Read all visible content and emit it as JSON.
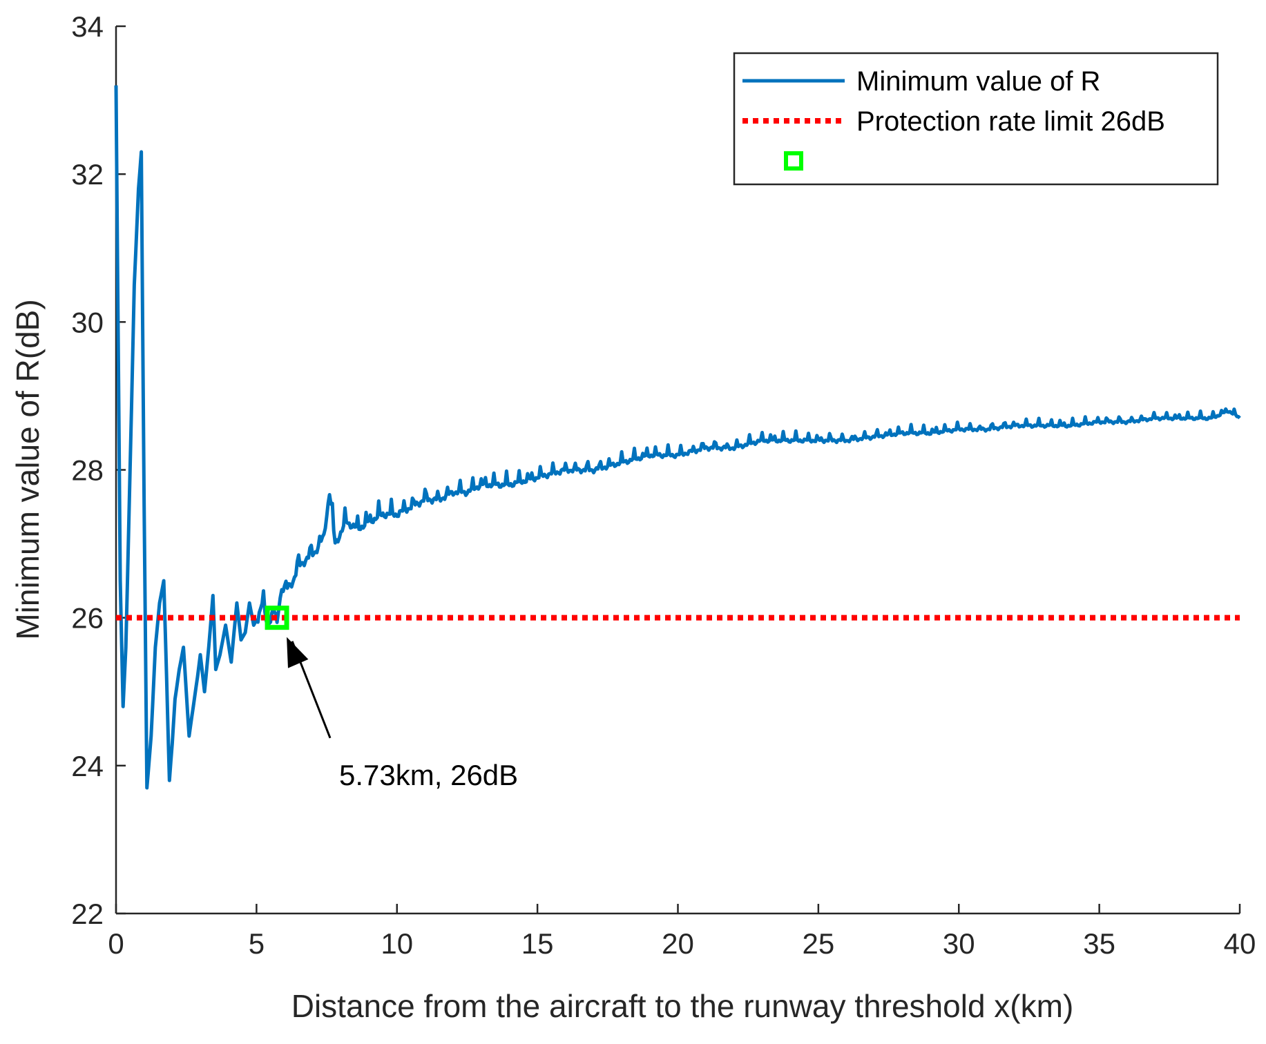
{
  "chart_data": {
    "type": "line",
    "title": "",
    "xlabel": "Distance from the aircraft to the runway threshold x(km)",
    "ylabel": "Minimum value of R(dB)",
    "xlim": [
      0,
      40
    ],
    "ylim": [
      22,
      34
    ],
    "xticks": [
      0,
      5,
      10,
      15,
      20,
      25,
      30,
      35,
      40
    ],
    "yticks": [
      22,
      24,
      26,
      28,
      30,
      32,
      34
    ],
    "grid": false,
    "legend_position": "top-right",
    "series": [
      {
        "name": "Minimum value of R",
        "style": "solid",
        "color": "#0072BD",
        "x": [
          0.0,
          0.15,
          0.25,
          0.35,
          0.5,
          0.65,
          0.8,
          0.9,
          1.0,
          1.1,
          1.25,
          1.4,
          1.55,
          1.7,
          1.8,
          1.9,
          2.0,
          2.1,
          2.25,
          2.4,
          2.6,
          2.75,
          2.9,
          3.0,
          3.15,
          3.3,
          3.45,
          3.55,
          3.7,
          3.9,
          4.1,
          4.3,
          4.45,
          4.6,
          4.75,
          4.9,
          5.05,
          5.2,
          5.4,
          5.6,
          5.73,
          5.9,
          6.1,
          6.3,
          6.5,
          6.8,
          7.1,
          7.4,
          7.6,
          7.8,
          8.2,
          8.6,
          9.0,
          9.5,
          10.0,
          10.5,
          11.0,
          11.5,
          12.0,
          12.5,
          13.0,
          13.5,
          14.0,
          15.0,
          16.0,
          17.0,
          18.0,
          19.0,
          20.0,
          21.0,
          22.0,
          23.0,
          24.0,
          25.0,
          26.0,
          27.0,
          28.0,
          29.0,
          30.0,
          31.0,
          32.0,
          33.0,
          34.0,
          35.0,
          36.0,
          37.0,
          38.0,
          39.0,
          39.6,
          40.0
        ],
        "values": [
          33.2,
          26.5,
          24.8,
          25.6,
          28.0,
          30.5,
          31.8,
          32.3,
          27.5,
          23.7,
          24.4,
          25.6,
          26.2,
          26.5,
          25.2,
          23.8,
          24.3,
          24.9,
          25.3,
          25.6,
          24.4,
          24.8,
          25.2,
          25.5,
          25.0,
          25.6,
          26.3,
          25.3,
          25.5,
          25.9,
          25.4,
          26.2,
          25.7,
          25.8,
          26.2,
          25.9,
          26.0,
          26.2,
          25.9,
          26.1,
          26.0,
          26.4,
          26.4,
          26.5,
          26.7,
          26.8,
          26.9,
          27.1,
          27.7,
          27.0,
          27.3,
          27.2,
          27.3,
          27.4,
          27.4,
          27.5,
          27.6,
          27.6,
          27.7,
          27.7,
          27.8,
          27.8,
          27.8,
          27.9,
          28.0,
          28.0,
          28.1,
          28.2,
          28.2,
          28.3,
          28.3,
          28.4,
          28.4,
          28.4,
          28.4,
          28.45,
          28.5,
          28.5,
          28.55,
          28.55,
          28.6,
          28.6,
          28.6,
          28.65,
          28.65,
          28.7,
          28.7,
          28.7,
          28.8,
          28.7
        ]
      },
      {
        "name": "Protection rate limit 26dB",
        "style": "dotted",
        "color": "#FF0000",
        "x": [
          0,
          40
        ],
        "values": [
          26,
          26
        ]
      },
      {
        "name": "",
        "style": "square-marker",
        "color": "#00FF00",
        "x": [
          5.73
        ],
        "values": [
          26
        ]
      }
    ],
    "annotations": [
      {
        "text": "5.73km, 26dB",
        "target_x": 5.73,
        "target_y": 26,
        "text_x": 10.4,
        "text_y": 24.0
      }
    ]
  }
}
